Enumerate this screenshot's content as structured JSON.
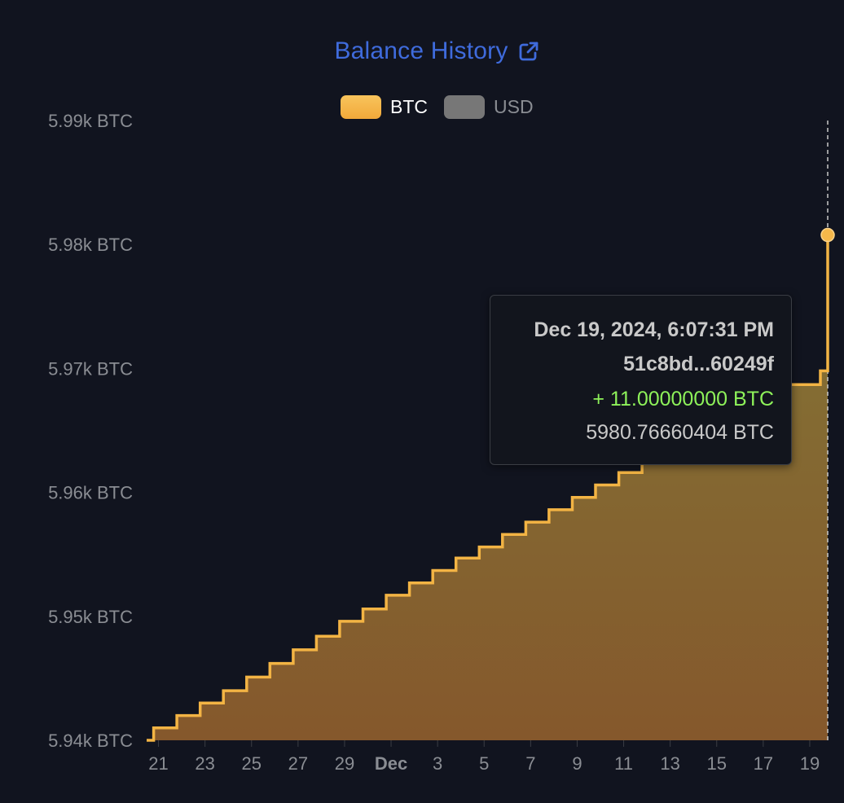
{
  "header": {
    "title": "Balance History",
    "icon": "external-link-icon"
  },
  "legend": [
    {
      "label": "BTC",
      "color": "#f3ad3c",
      "active": true
    },
    {
      "label": "USD",
      "color": "#777777",
      "active": false
    }
  ],
  "tooltip": {
    "date": "Dec 19, 2024, 6:07:31 PM",
    "tx": "51c8bd...60249f",
    "amount": "+ 11.00000000 BTC",
    "balance": "5980.76660404 BTC"
  },
  "colors": {
    "background": "#11141f",
    "line": "#f3b444",
    "fill_top": "#837536",
    "fill_bottom": "#85582c",
    "axis_text": "#8a8d93",
    "title": "#3f6bdc",
    "positive": "#8ef25a"
  },
  "chart_data": {
    "type": "area",
    "step": true,
    "series": [
      {
        "name": "BTC",
        "x": [
          "2024-11-20",
          "2024-11-21",
          "2024-11-22",
          "2024-11-23",
          "2024-11-24",
          "2024-11-25",
          "2024-11-26",
          "2024-11-27",
          "2024-11-28",
          "2024-11-29",
          "2024-11-30",
          "2024-12-01",
          "2024-12-02",
          "2024-12-03",
          "2024-12-04",
          "2024-12-05",
          "2024-12-06",
          "2024-12-07",
          "2024-12-08",
          "2024-12-09",
          "2024-12-10",
          "2024-12-11",
          "2024-12-12",
          "2024-12-13",
          "2024-12-14",
          "2024-12-15",
          "2024-12-16",
          "2024-12-17",
          "2024-12-18",
          "2024-12-19",
          "2024-12-19"
        ],
        "values": [
          5940.0,
          5941.0,
          5942.0,
          5943.0,
          5944.0,
          5945.1,
          5946.2,
          5947.3,
          5948.4,
          5949.6,
          5950.6,
          5951.7,
          5952.7,
          5953.7,
          5954.7,
          5955.6,
          5956.6,
          5957.6,
          5958.6,
          5959.6,
          5960.6,
          5961.6,
          5962.6,
          5963.6,
          5964.6,
          5965.6,
          5966.6,
          5967.5,
          5968.7,
          5969.8,
          5980.8
        ]
      }
    ],
    "x_ticks": [
      "21",
      "23",
      "25",
      "27",
      "29",
      "Dec",
      "3",
      "5",
      "7",
      "9",
      "11",
      "13",
      "15",
      "17",
      "19"
    ],
    "y_ticks": [
      "5.94k BTC",
      "5.95k BTC",
      "5.96k BTC",
      "5.97k BTC",
      "5.98k BTC",
      "5.99k BTC"
    ],
    "ylim": [
      5940,
      5990
    ],
    "highlight": {
      "x": "2024-12-19",
      "value": 5980.76660404
    }
  }
}
